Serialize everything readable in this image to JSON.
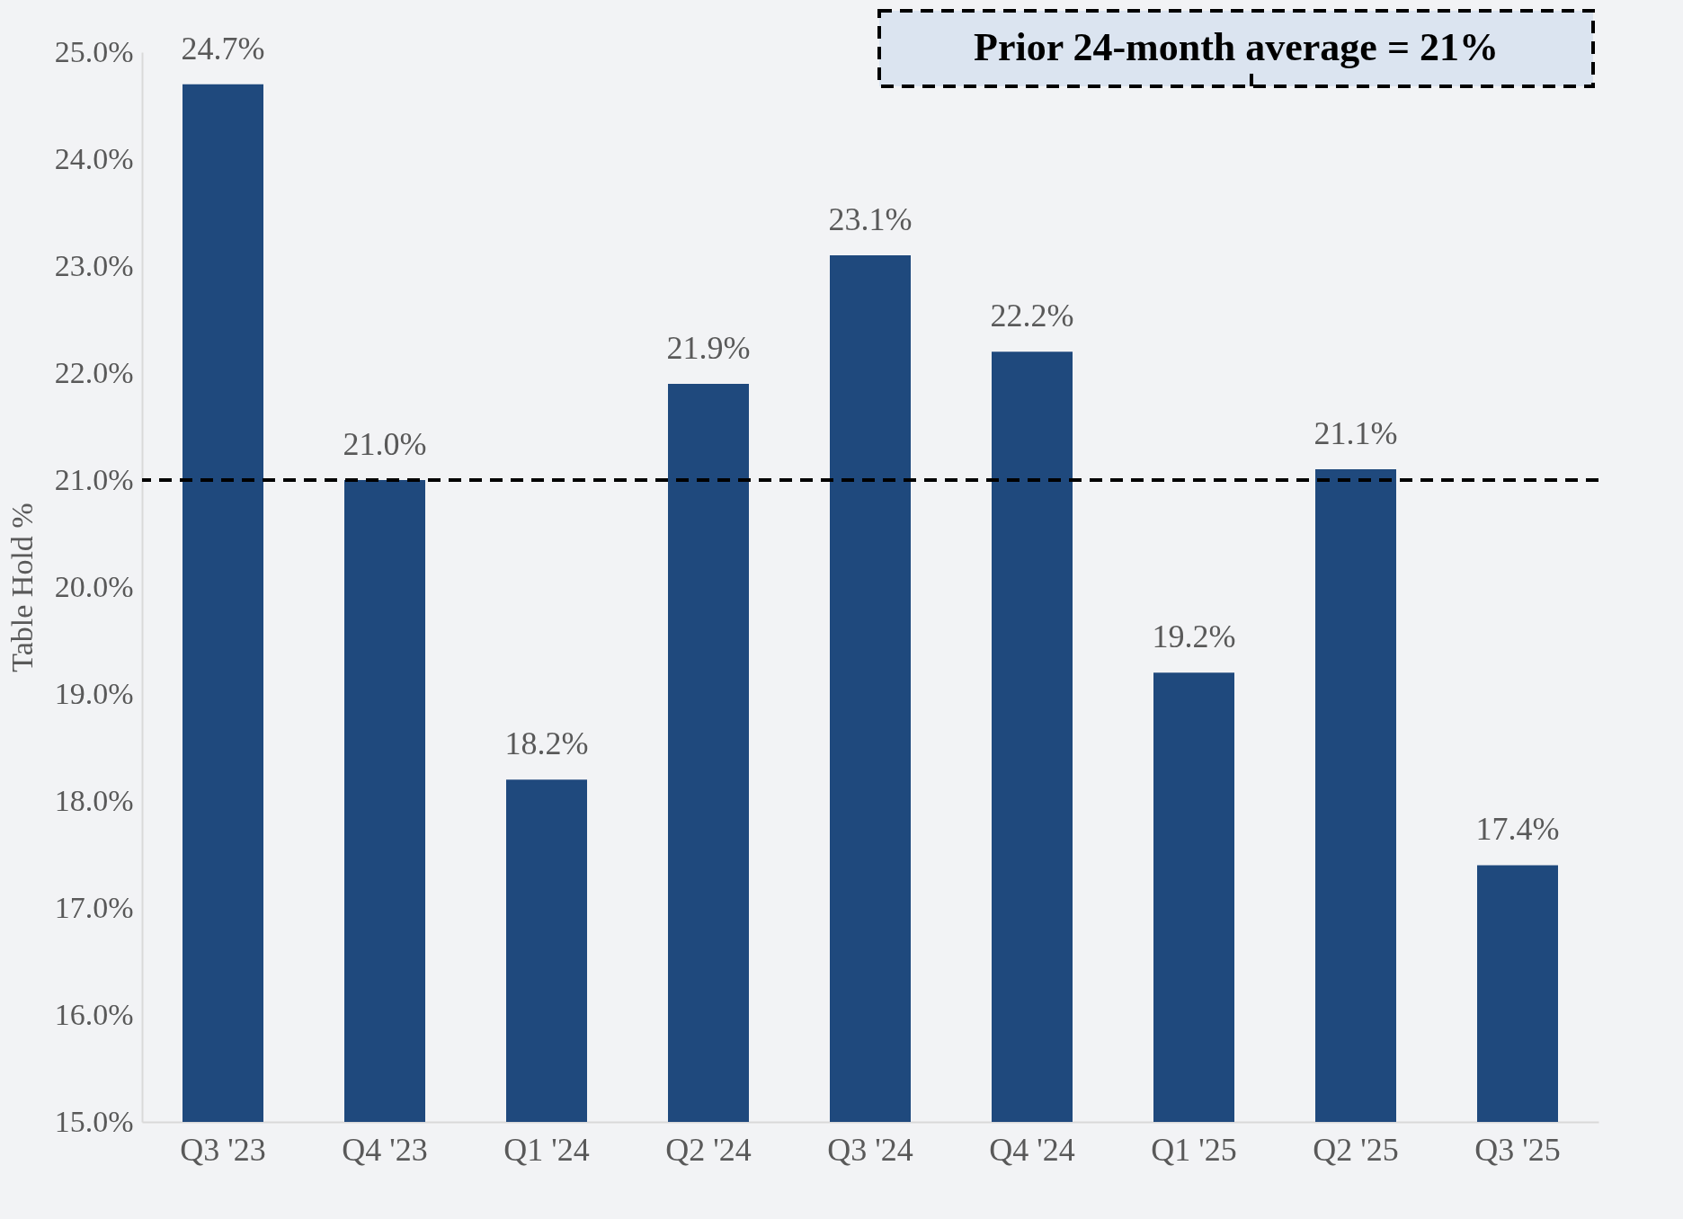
{
  "chart_data": {
    "type": "bar",
    "ylabel": "Table Hold %",
    "categories": [
      "Q3 '23",
      "Q4 '23",
      "Q1 '24",
      "Q2 '24",
      "Q3 '24",
      "Q4 '24",
      "Q1 '25",
      "Q2 '25",
      "Q3 '25"
    ],
    "values": [
      24.7,
      21.0,
      18.2,
      21.9,
      23.1,
      22.2,
      19.2,
      21.1,
      17.4
    ],
    "value_labels": [
      "24.7%",
      "21.0%",
      "18.2%",
      "21.9%",
      "23.1%",
      "22.2%",
      "19.2%",
      "21.1%",
      "17.4%"
    ],
    "color": "#1f497d",
    "ylim": [
      15,
      25
    ],
    "yticks": [
      {
        "value": 15,
        "label": "15.0%"
      },
      {
        "value": 16,
        "label": "16.0%"
      },
      {
        "value": 17,
        "label": "17.0%"
      },
      {
        "value": 18,
        "label": "18.0%"
      },
      {
        "value": 19,
        "label": "19.0%"
      },
      {
        "value": 20,
        "label": "20.0%"
      },
      {
        "value": 21,
        "label": "21.0%"
      },
      {
        "value": 22,
        "label": "22.0%"
      },
      {
        "value": 23,
        "label": "23.0%"
      },
      {
        "value": 24,
        "label": "24.0%"
      },
      {
        "value": 25,
        "label": "25.0%"
      }
    ],
    "ref_lines": [
      {
        "axis": "y",
        "value": 21,
        "label": "Prior 24-month average = 21%",
        "color": "#000000",
        "line_style": "dashed"
      }
    ],
    "grid": false
  }
}
